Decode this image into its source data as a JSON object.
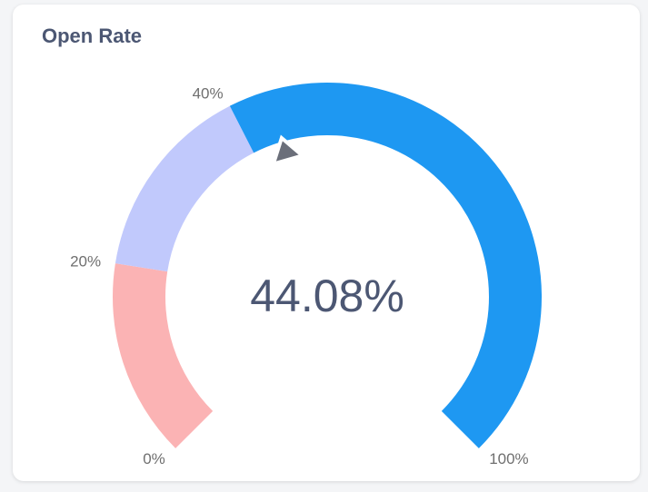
{
  "card": {
    "title": "Open Rate"
  },
  "chart_data": {
    "type": "gauge",
    "title": "Open Rate",
    "value": 44.08,
    "value_label": "44.08%",
    "min": 0,
    "max": 100,
    "segments": [
      {
        "from": 0,
        "to": 20,
        "color": "#fbb3b4"
      },
      {
        "from": 20,
        "to": 40,
        "color": "#c1c9fc"
      },
      {
        "from": 40,
        "to": 100,
        "color": "#1e98f2"
      }
    ],
    "tick_labels": [
      {
        "value": 0,
        "label": "0%"
      },
      {
        "value": 20,
        "label": "20%"
      },
      {
        "value": 40,
        "label": "40%"
      },
      {
        "value": 100,
        "label": "100%"
      }
    ],
    "needle_color": "#6b6f7a",
    "text_color": "#4c5773",
    "tick_color": "#6f6f6f"
  }
}
